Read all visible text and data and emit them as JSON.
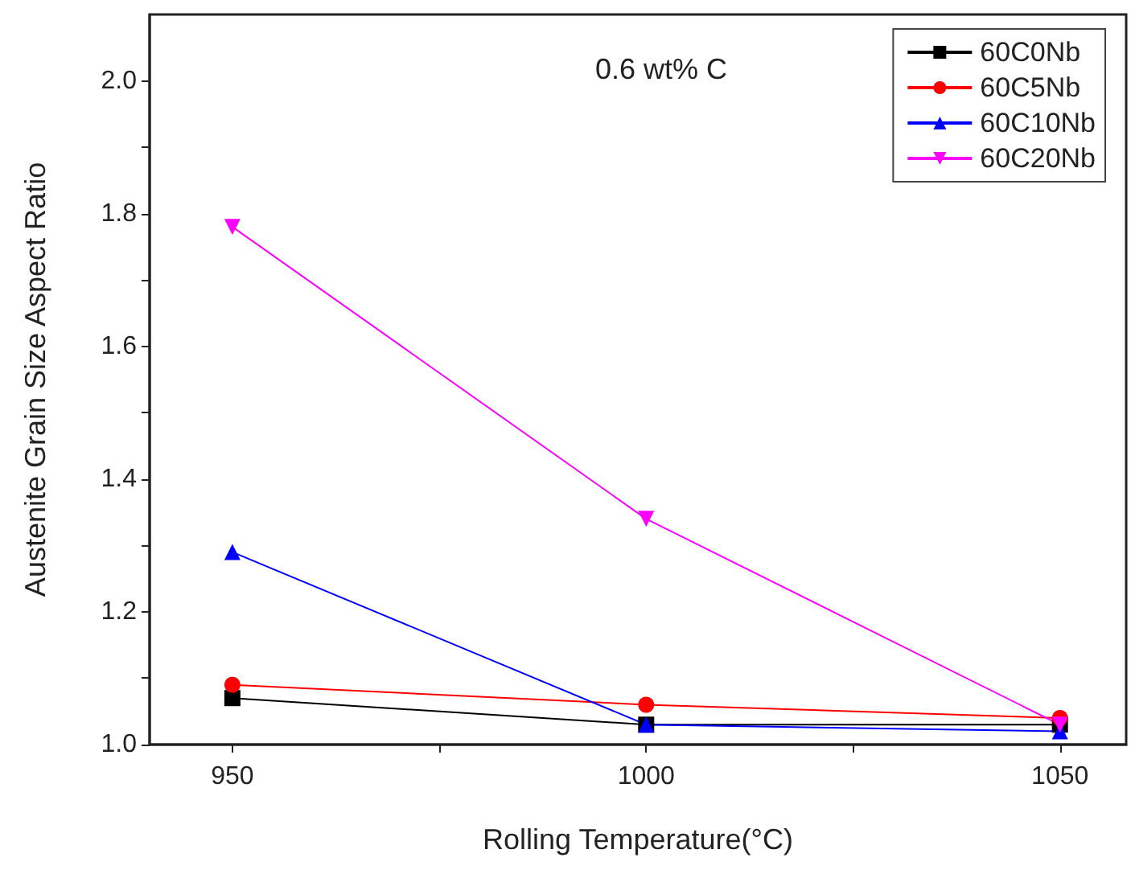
{
  "chart_data": {
    "type": "line",
    "xlabel": "Rolling Temperature(°C)",
    "ylabel": "Austenite Grain Size Aspect Ratio",
    "x": [
      950,
      1000,
      1050
    ],
    "series": [
      {
        "name": "60C0Nb",
        "color": "#000000",
        "marker": "square",
        "values": [
          1.07,
          1.03,
          1.03
        ]
      },
      {
        "name": "60C5Nb",
        "color": "#ff0000",
        "marker": "circle",
        "values": [
          1.09,
          1.06,
          1.04
        ]
      },
      {
        "name": "60C10Nb",
        "color": "#0000ff",
        "marker": "triangle",
        "values": [
          1.29,
          1.03,
          1.02
        ]
      },
      {
        "name": "60C20Nb",
        "color": "#ff00ff",
        "marker": "triangle-down",
        "values": [
          1.78,
          1.34,
          1.03
        ]
      }
    ],
    "xlim": [
      940,
      1058
    ],
    "xticks": [
      950,
      {
        "value": 975,
        "label": null
      },
      1000,
      {
        "value": 1025,
        "label": null
      },
      1050
    ],
    "ylim": [
      1.0,
      2.1
    ],
    "yticks": [
      {
        "value": 1.0,
        "label": "1.0"
      },
      {
        "value": 1.1,
        "label": null
      },
      1.2,
      {
        "value": 1.3,
        "label": null
      },
      1.4,
      {
        "value": 1.5,
        "label": null
      },
      1.6,
      {
        "value": 1.7,
        "label": null
      },
      1.8,
      {
        "value": 1.9,
        "label": null
      },
      {
        "value": 2.0,
        "label": "2.0"
      }
    ],
    "annotations": [
      "0.6 wt% C"
    ],
    "legend": "top right",
    "grid": false,
    "line_style": "solid"
  }
}
